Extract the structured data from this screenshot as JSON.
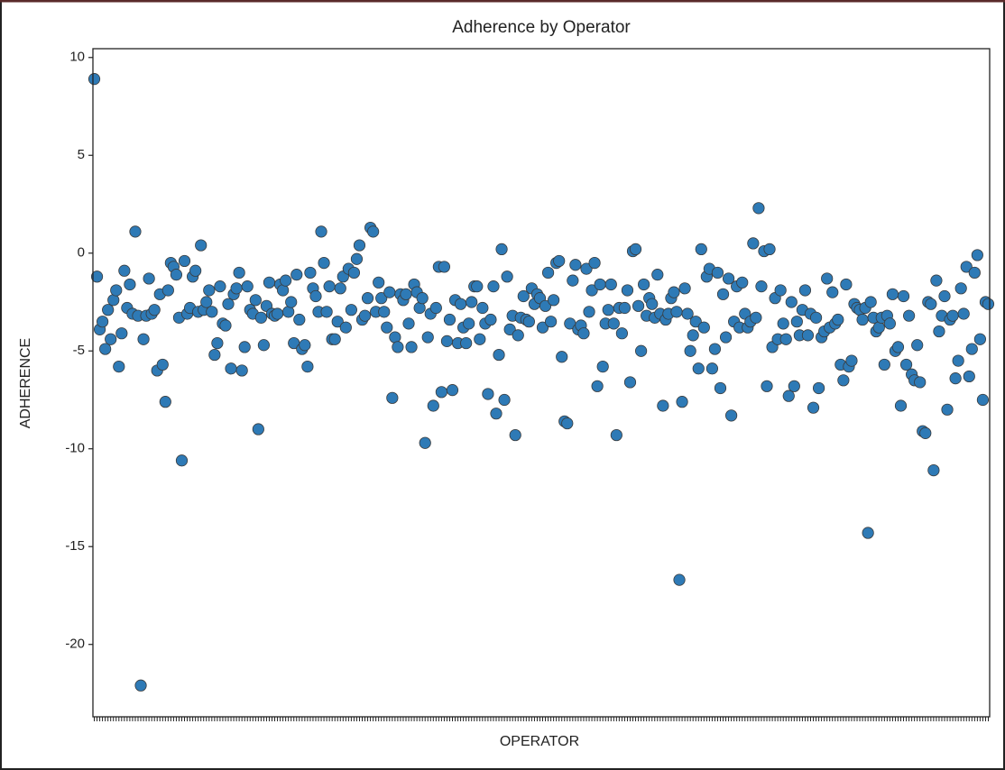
{
  "chart_data": {
    "type": "scatter",
    "title": "Adherence by Operator",
    "x_label": "OPERATOR",
    "y_label": "ADHERENCE",
    "color": "#2e7ab6",
    "edge_color": "#3a3a3a",
    "ylim": [
      -23.7,
      10.45
    ],
    "yticks": [
      -20,
      -15,
      -10,
      -5,
      0,
      5,
      10
    ],
    "grid": false,
    "categories": [
      null,
      null,
      null,
      null,
      null,
      null,
      null,
      null,
      null,
      null,
      null,
      null,
      null,
      null,
      null,
      null,
      null,
      null,
      null,
      null,
      null,
      null,
      null,
      null,
      null,
      null,
      null,
      null,
      null,
      null,
      null,
      null,
      null,
      null,
      null,
      null,
      null,
      null,
      null,
      null,
      null,
      null,
      null,
      null,
      null,
      null,
      null,
      null,
      null,
      null,
      null,
      null,
      null,
      null,
      null,
      null,
      null,
      null,
      null,
      null,
      null,
      null,
      null,
      null,
      null,
      null,
      null,
      null,
      null,
      null,
      null,
      null,
      null,
      null,
      null,
      null,
      null,
      null,
      null,
      null,
      null,
      null,
      null,
      null,
      null,
      null,
      null,
      null,
      null,
      null,
      null,
      null,
      null,
      null,
      null,
      null,
      null,
      null,
      null,
      null,
      null,
      null,
      null,
      null,
      null,
      null,
      null,
      null,
      null,
      null,
      null,
      null,
      null,
      null,
      null,
      null,
      null,
      null,
      null,
      null,
      null,
      null,
      null,
      null,
      null,
      null,
      null,
      null,
      null,
      null,
      null,
      null,
      null,
      null,
      null,
      null,
      null,
      null,
      null,
      null,
      null,
      null,
      null,
      null,
      null,
      null,
      null,
      null,
      null,
      null,
      null,
      null,
      null,
      null,
      null,
      null,
      null,
      null,
      null,
      null,
      null,
      null,
      null,
      null,
      null,
      null,
      null,
      null,
      null,
      null,
      null,
      null,
      null,
      null,
      null,
      null,
      null,
      null,
      null,
      null,
      null,
      null,
      null,
      null,
      null,
      null,
      null,
      null,
      null,
      null,
      null,
      null,
      null,
      null,
      null,
      null,
      null,
      null,
      null,
      null,
      null,
      null,
      null,
      null,
      null,
      null,
      null,
      null,
      null,
      null,
      null,
      null,
      null,
      null,
      null,
      null,
      null,
      null,
      null,
      null,
      null,
      null,
      null,
      null,
      null,
      null,
      null,
      null,
      null,
      null,
      null,
      null,
      null,
      null,
      null,
      null,
      null,
      null,
      null,
      null,
      null,
      null,
      null,
      null,
      null,
      null,
      null,
      null,
      null,
      null,
      null,
      null,
      null,
      null,
      null,
      null,
      null,
      null,
      null,
      null,
      null,
      null,
      null,
      null,
      null,
      null,
      null,
      null,
      null,
      null,
      null,
      null,
      null,
      null,
      null,
      null,
      null,
      null,
      null,
      null,
      null,
      null,
      null,
      null,
      null,
      null,
      null,
      null,
      null,
      null,
      null,
      null,
      null,
      null,
      null,
      null,
      null,
      null,
      null,
      null,
      null,
      null,
      null,
      null,
      null,
      null,
      null,
      null,
      null,
      null,
      null,
      null,
      null,
      null,
      null,
      null,
      null,
      null,
      null,
      null,
      null,
      null,
      null,
      null,
      null,
      null,
      null,
      null
    ],
    "values": [
      8.9,
      -1.2,
      -3.9,
      -3.5,
      -4.9,
      -2.9,
      -4.4,
      -2.4,
      -1.9,
      -5.8,
      -4.1,
      -0.9,
      -2.8,
      -1.6,
      -3.1,
      1.1,
      -3.2,
      -22.1,
      -4.4,
      -3.2,
      -1.3,
      -3.1,
      -2.9,
      -6.0,
      -2.1,
      -5.7,
      -7.6,
      -1.9,
      -0.5,
      -0.7,
      -1.1,
      -3.3,
      -10.6,
      -0.4,
      -3.1,
      -2.8,
      -1.2,
      -0.9,
      -3.0,
      0.4,
      -2.9,
      -2.5,
      -1.9,
      -3.0,
      -5.2,
      -4.6,
      -1.7,
      -3.6,
      -3.7,
      -2.6,
      -5.9,
      -2.1,
      -1.8,
      -1.0,
      -6.0,
      -4.8,
      -1.7,
      -2.9,
      -3.1,
      -2.4,
      -9.0,
      -3.3,
      -4.7,
      -2.7,
      -1.5,
      -3.1,
      -3.2,
      -3.1,
      -1.6,
      -1.9,
      -1.4,
      -3.0,
      -2.5,
      -4.6,
      -1.1,
      -3.4,
      -4.9,
      -4.7,
      -5.8,
      -1.0,
      -1.8,
      -2.2,
      -3.0,
      1.1,
      -0.5,
      -3.0,
      -1.7,
      -4.4,
      -4.4,
      -3.5,
      -1.8,
      -1.2,
      -3.8,
      -0.8,
      -2.9,
      -1.0,
      -0.3,
      0.4,
      -3.4,
      -3.2,
      -2.3,
      1.3,
      1.1,
      -3.0,
      -1.5,
      -2.3,
      -3.0,
      -3.8,
      -2.0,
      -7.4,
      -4.3,
      -4.8,
      -2.1,
      -2.4,
      -2.1,
      -3.6,
      -4.8,
      -1.6,
      -2.0,
      -2.8,
      -2.3,
      -9.7,
      -4.3,
      -3.1,
      -7.8,
      -2.8,
      -0.7,
      -7.1,
      -0.7,
      -4.5,
      -3.4,
      -7.0,
      -2.4,
      -4.6,
      -2.6,
      -3.8,
      -4.6,
      -3.6,
      -2.5,
      -1.7,
      -1.7,
      -4.4,
      -2.8,
      -3.6,
      -7.2,
      -3.4,
      -1.7,
      -8.2,
      -5.2,
      0.2,
      -7.5,
      -1.2,
      -3.9,
      -3.2,
      -9.3,
      -4.2,
      -3.3,
      -2.2,
      -3.4,
      -3.5,
      -1.8,
      -2.6,
      -2.1,
      -2.3,
      -3.8,
      -2.7,
      -1.0,
      -3.5,
      -2.4,
      -0.5,
      -0.4,
      -5.3,
      -8.6,
      -8.7,
      -3.6,
      -1.4,
      -0.6,
      -3.9,
      -3.7,
      -4.1,
      -0.8,
      -3.0,
      -1.9,
      -0.5,
      -6.8,
      -1.6,
      -5.8,
      -3.6,
      -2.9,
      -1.6,
      -3.6,
      -9.3,
      -2.8,
      -4.1,
      -2.8,
      -1.9,
      -6.6,
      0.1,
      0.2,
      -2.7,
      -5.0,
      -1.6,
      -3.2,
      -2.3,
      -2.6,
      -3.3,
      -1.1,
      -3.1,
      -7.8,
      -3.4,
      -3.1,
      -2.3,
      -2.0,
      -3.0,
      -16.7,
      -7.6,
      -1.8,
      -3.1,
      -5.0,
      -4.2,
      -3.5,
      -5.9,
      0.2,
      -3.8,
      -1.2,
      -0.8,
      -5.9,
      -4.9,
      -1.0,
      -6.9,
      -2.1,
      -4.3,
      -1.3,
      -8.3,
      -3.5,
      -1.7,
      -3.8,
      -1.5,
      -3.1,
      -3.8,
      -3.5,
      0.5,
      -3.3,
      2.3,
      -1.7,
      0.1,
      -6.8,
      0.2,
      -4.8,
      -2.3,
      -4.4,
      -1.9,
      -3.6,
      -4.4,
      -7.3,
      -2.5,
      -6.8,
      -3.5,
      -4.2,
      -2.9,
      -1.9,
      -4.2,
      -3.1,
      -7.9,
      -3.3,
      -6.9,
      -4.3,
      -4.0,
      -1.3,
      -3.8,
      -2.0,
      -3.6,
      -3.4,
      -5.7,
      -6.5,
      -1.6,
      -5.8,
      -5.5,
      -2.6,
      -2.8,
      -2.9,
      -3.4,
      -2.8,
      -14.3,
      -2.5,
      -3.3,
      -4.0,
      -3.8,
      -3.3,
      -5.7,
      -3.2,
      -3.6,
      -2.1,
      -5.0,
      -4.8,
      -7.8,
      -2.2,
      -5.7,
      -3.2,
      -6.2,
      -6.5,
      -4.7,
      -6.6,
      -9.1,
      -9.2,
      -2.5,
      -2.6,
      -11.1,
      -1.4,
      -4.0,
      -3.2,
      -2.2,
      -8.0,
      -3.4,
      -3.2,
      -6.4,
      -5.5,
      -1.8,
      -3.1,
      -0.7,
      -6.3,
      -4.9,
      -1.0,
      -0.1,
      -4.4,
      -7.5,
      -2.5,
      -2.6
    ]
  }
}
